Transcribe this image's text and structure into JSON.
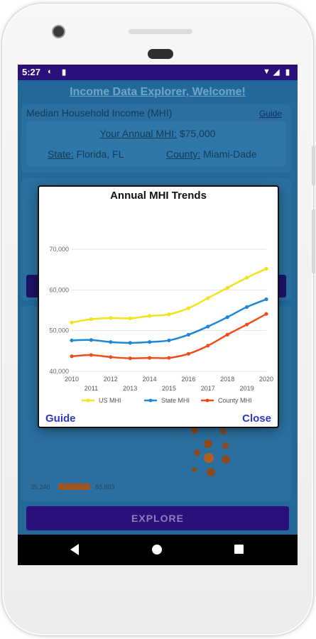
{
  "status_bar": {
    "time": "5:27",
    "icons": [
      "notification-p-icon",
      "sd-card-icon",
      "wifi-icon",
      "signal-icon",
      "battery-icon"
    ]
  },
  "app": {
    "title": "Income Data Explorer, Welcome!",
    "mhi_section": {
      "heading": "Median Household Income (MHI)",
      "guide_link": "Guide",
      "your_mhi_label": "Your Annual MHI:",
      "your_mhi_value": "$75,000",
      "state_label": "State:",
      "state_value": "Florida, FL",
      "county_label": "County:",
      "county_value": "Miami-Dade"
    },
    "map_legend": {
      "min": "35,240",
      "max": "83,803"
    },
    "explore_button": "EXPLORE"
  },
  "dialog": {
    "title": "Annual MHI Trends",
    "guide_button": "Guide",
    "close_button": "Close"
  },
  "colors": {
    "us": "#f2e31c",
    "state": "#1f86d6",
    "county": "#ee4d1c",
    "status_bar": "#2b0f7a",
    "app_bg": "#22699a",
    "dialog_button": "#2c37c9"
  },
  "chart_data": {
    "type": "line",
    "title": "Annual MHI Trends",
    "x": [
      2010,
      2011,
      2012,
      2013,
      2014,
      2015,
      2016,
      2017,
      2018,
      2019,
      2020
    ],
    "x_tick_labels_top": [
      "2010",
      "2012",
      "2014",
      "2016",
      "2018",
      "2020"
    ],
    "x_tick_labels_bottom": [
      "2011",
      "2013",
      "2015",
      "2017",
      "2019"
    ],
    "y_tick_labels": [
      "70,000",
      "60,000",
      "50,000",
      "40,000"
    ],
    "y_ticks": [
      70000,
      60000,
      50000,
      40000
    ],
    "ylim": [
      40000,
      70000
    ],
    "xlim": [
      2010,
      2020
    ],
    "grid": true,
    "legend_position": "bottom",
    "series": [
      {
        "name": "US MHI",
        "color": "#f2e31c",
        "values": [
          52000,
          52800,
          53100,
          53000,
          53600,
          54000,
          55500,
          58000,
          60500,
          63000,
          65200
        ]
      },
      {
        "name": "State MHI",
        "color": "#1f86d6",
        "values": [
          47600,
          47700,
          47200,
          47000,
          47200,
          47600,
          49000,
          51000,
          53300,
          55800,
          57700
        ]
      },
      {
        "name": "County MHI",
        "color": "#ee4d1c",
        "values": [
          43700,
          44000,
          43500,
          43200,
          43300,
          43300,
          44300,
          46300,
          49000,
          51500,
          54100
        ]
      }
    ]
  }
}
